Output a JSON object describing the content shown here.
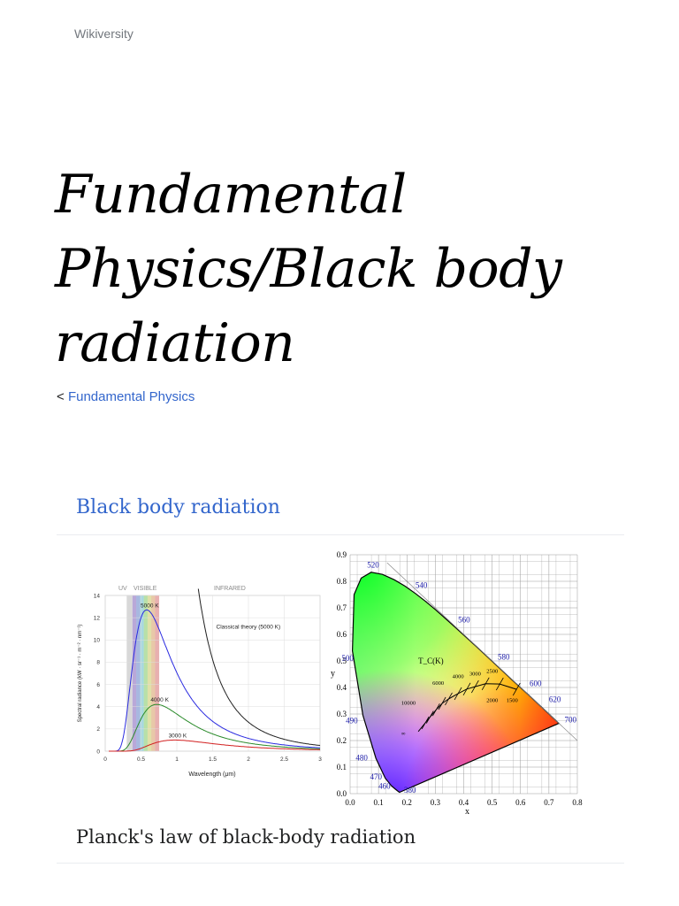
{
  "site": {
    "name": "Wikiversity"
  },
  "page": {
    "title": "Fundamental Physics/Black body radiation"
  },
  "breadcrumb": {
    "prefix": "<",
    "link_label": "Fundamental Physics"
  },
  "section": {
    "heading": "Black body radiation",
    "caption": "Planck's law of black-body radiation"
  },
  "colors": {
    "link": "#3366cc",
    "title": "#000000",
    "rule": "#eaecf0"
  },
  "chart_data": [
    {
      "type": "line",
      "xlabel": "Wavelength (μm)",
      "ylabel": "Spectral radiance (kW · sr⁻¹ · m⁻² · nm⁻¹)",
      "xlim": [
        0,
        3
      ],
      "ylim": [
        0,
        14
      ],
      "xticks": [
        "0",
        "0.5",
        "1",
        "1.5",
        "2",
        "2.5",
        "3"
      ],
      "yticks": [
        "0",
        "2",
        "4",
        "6",
        "8",
        "10",
        "12",
        "14"
      ],
      "bands": [
        "UV",
        "VISIBLE",
        "INFRARED"
      ],
      "series": [
        {
          "name": "5000 K",
          "color": "#2a2ae0",
          "peak_x": 0.58,
          "peak_y": 12.7
        },
        {
          "name": "4000 K",
          "color": "#2a8a2a",
          "peak_x": 0.72,
          "peak_y": 4.2
        },
        {
          "name": "3000 K",
          "color": "#d22020",
          "peak_x": 0.97,
          "peak_y": 1.0
        },
        {
          "name": "Classical theory (5000 K)",
          "color": "#202020"
        }
      ]
    },
    {
      "type": "scatter",
      "xlabel": "x",
      "ylabel": "y",
      "xlim": [
        0.0,
        0.8
      ],
      "ylim": [
        0.0,
        0.9
      ],
      "xticks": [
        "0.0",
        "0.1",
        "0.2",
        "0.3",
        "0.4",
        "0.5",
        "0.6",
        "0.7",
        "0.8"
      ],
      "yticks": [
        "0.0",
        "0.1",
        "0.2",
        "0.3",
        "0.4",
        "0.5",
        "0.6",
        "0.7",
        "0.8",
        "0.9"
      ],
      "wavelength_labels": [
        "380",
        "460",
        "470",
        "480",
        "490",
        "500",
        "520",
        "540",
        "560",
        "580",
        "600",
        "620",
        "700"
      ],
      "planckian_locus_title": "T_C(K)",
      "temperature_labels": [
        "10000",
        "6000",
        "4000",
        "3000",
        "2500",
        "2000",
        "1500",
        "∞"
      ]
    }
  ]
}
